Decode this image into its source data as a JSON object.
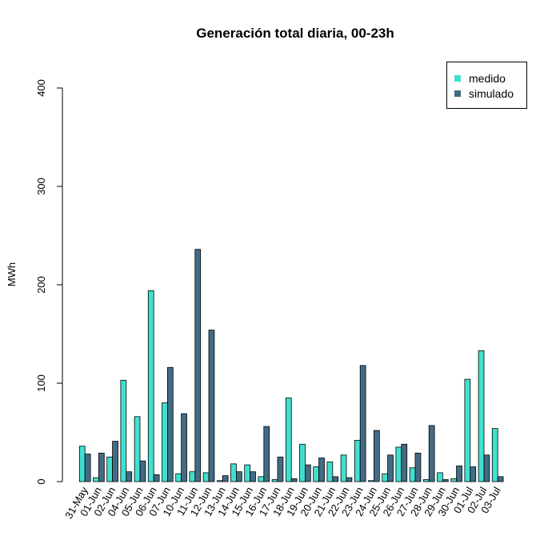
{
  "chart_data": {
    "type": "bar",
    "title": "Generación total diaria, 00-23h",
    "xlabel": "",
    "ylabel": "MWh",
    "ylim": [
      0,
      400
    ],
    "yticks": [
      0,
      100,
      200,
      300,
      400
    ],
    "grid": false,
    "legend_position": "top-right",
    "categories": [
      "31-May",
      "01-Jun",
      "02-Jun",
      "04-Jun",
      "05-Jun",
      "06-Jun",
      "07-Jun",
      "10-Jun",
      "11-Jun",
      "12-Jun",
      "13-Jun",
      "14-Jun",
      "15-Jun",
      "16-Jun",
      "17-Jun",
      "18-Jun",
      "19-Jun",
      "20-Jun",
      "21-Jun",
      "22-Jun",
      "23-Jun",
      "24-Jun",
      "25-Jun",
      "26-Jun",
      "27-Jun",
      "28-Jun",
      "29-Jun",
      "30-Jun",
      "01-Jul",
      "02-Jul",
      "03-Jul"
    ],
    "series": [
      {
        "name": "medido",
        "color": "#40e0d0",
        "values": [
          36,
          4,
          25,
          103,
          66,
          194,
          80,
          8,
          10,
          9,
          1,
          18,
          17,
          5,
          2,
          85,
          38,
          15,
          20,
          27,
          42,
          1,
          8,
          35,
          14,
          2,
          9,
          3,
          104,
          133,
          54
        ]
      },
      {
        "name": "simulado",
        "color": "#436b85",
        "values": [
          28,
          29,
          41,
          10,
          21,
          7,
          116,
          69,
          236,
          154,
          6,
          10,
          10,
          56,
          25,
          3,
          17,
          24,
          5,
          4,
          118,
          52,
          27,
          38,
          29,
          57,
          2,
          16,
          15,
          27,
          5
        ]
      }
    ]
  }
}
